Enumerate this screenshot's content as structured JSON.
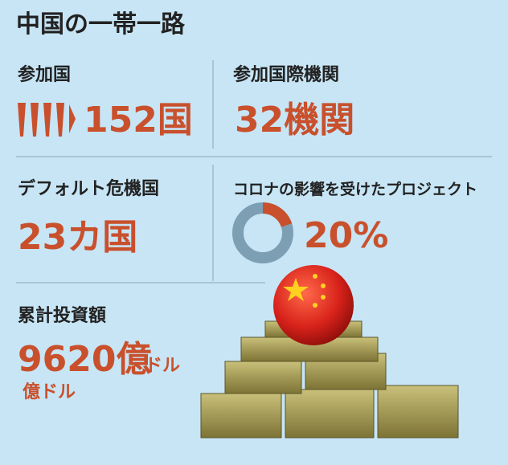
{
  "header": {
    "title": "中国の一帯一路"
  },
  "panels": [
    {
      "label": "参加国",
      "value": "152国"
    },
    {
      "label": "参加国際機関",
      "value": "32機関"
    },
    {
      "label": "デフォルト危機国",
      "value": "23カ国"
    },
    {
      "label": "コロナの影響を受けたプロジェクト",
      "donut": {
        "value": 20,
        "label": "20%"
      }
    },
    {
      "label": "累計投資額",
      "value": "9620億",
      "unit": "ドル",
      "extra": "億ドル"
    }
  ]
}
